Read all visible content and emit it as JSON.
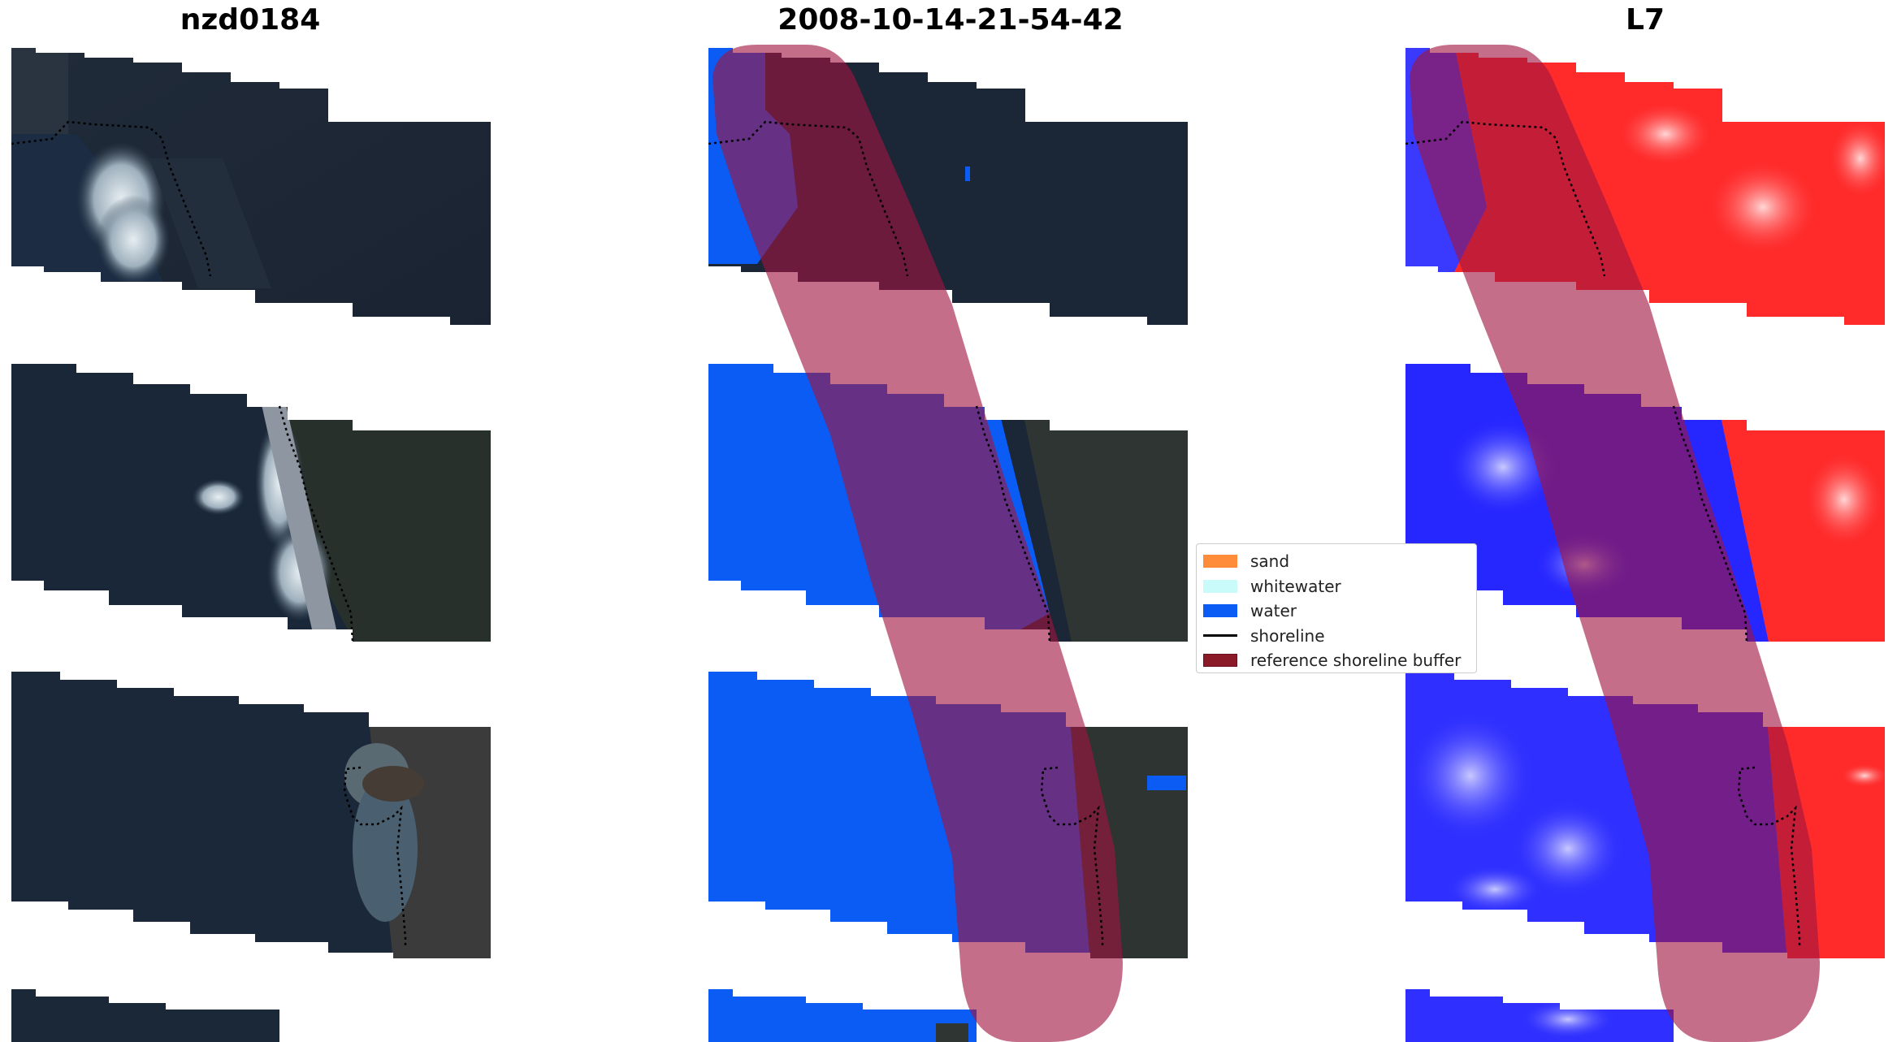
{
  "titles": {
    "left": "nzd0184",
    "middle": "2008-10-14-21-54-42",
    "right": "L7"
  },
  "legend": {
    "entries": [
      {
        "label": "sand",
        "color": "#ff8c3a",
        "kind": "patch"
      },
      {
        "label": "whitewater",
        "color": "#c9fbfb",
        "kind": "patch"
      },
      {
        "label": "water",
        "color": "#0a5cf5",
        "kind": "patch"
      },
      {
        "label": "shoreline",
        "color": "#000000",
        "kind": "line"
      },
      {
        "label": "reference shoreline buffer",
        "color": "#8b1a28",
        "kind": "patch"
      }
    ]
  },
  "colors": {
    "land_dark": "#1b2636",
    "water_dark": "#1a2a40",
    "whitewater_rgb": "#d8e4ec",
    "water_class": "#0a5cf5",
    "buffer": "#a01540",
    "ndwi_land": "#ff2a2a",
    "ndwi_water": "#2b2bff"
  }
}
